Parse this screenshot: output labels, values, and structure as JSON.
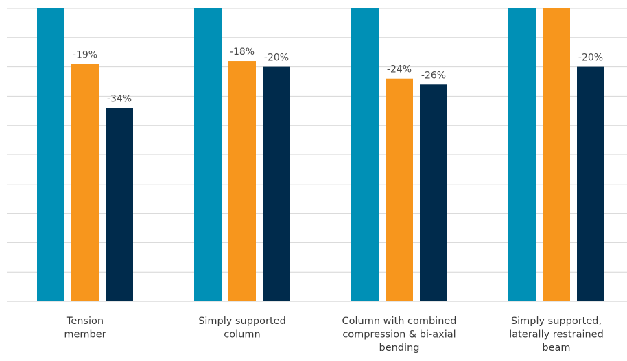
{
  "chart_data": {
    "type": "bar",
    "categories": [
      [
        "Tension",
        "member"
      ],
      [
        "Simply supported",
        "column"
      ],
      [
        "Column with combined",
        "compression & bi-axial",
        "bending"
      ],
      [
        "Simply supported,",
        "laterally restrained",
        "beam"
      ]
    ],
    "series": [
      {
        "color": "#0090b6",
        "values": [
          100,
          100,
          100,
          100
        ],
        "labels": [
          "",
          "",
          "",
          ""
        ]
      },
      {
        "color": "#f7961d",
        "values": [
          81,
          82,
          76,
          100
        ],
        "labels": [
          "-19%",
          "-18%",
          "-24%",
          ""
        ]
      },
      {
        "color": "#002b4c",
        "values": [
          66,
          80,
          74,
          80
        ],
        "labels": [
          "-34%",
          "-20%",
          "-26%",
          "-20%"
        ]
      }
    ],
    "ylim": [
      0,
      100
    ],
    "grid": true,
    "gridline_count": 10,
    "axis_tick_labels": false,
    "legend": false
  }
}
